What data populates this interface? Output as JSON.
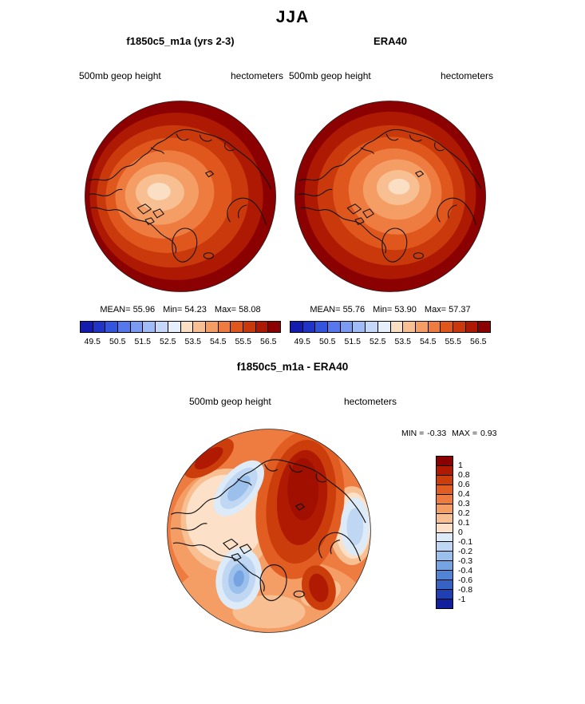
{
  "title": "JJA",
  "panels": {
    "model": {
      "title": "f1850c5_m1a (yrs 2-3)",
      "field": "500mb geop height",
      "units": "hectometers",
      "stats": {
        "mean_label": "MEAN=",
        "mean": "55.96",
        "min_label": "Min=",
        "min": "54.23",
        "max_label": "Max=",
        "max": "58.08"
      }
    },
    "obs": {
      "title": "ERA40",
      "field": "500mb geop height",
      "units": "hectometers",
      "stats": {
        "mean_label": "MEAN=",
        "mean": "55.76",
        "min_label": "Min=",
        "min": "53.90",
        "max_label": "Max=",
        "max": "57.37"
      }
    },
    "diff": {
      "title": "f1850c5_m1a - ERA40",
      "field": "500mb geop height",
      "units": "hectometers",
      "stats": {
        "min_label": "MIN =",
        "min": "-0.33",
        "max_label": "MAX =",
        "max": "0.93"
      }
    }
  },
  "chart_data": [
    {
      "type": "heatmap",
      "title": "f1850c5_m1a (yrs 2-3)",
      "season": "JJA",
      "field": "500mb geop height",
      "units": "hectometers",
      "projection": "north polar stereographic",
      "stats": {
        "mean": 55.96,
        "min": 54.23,
        "max": 58.08
      },
      "colorbar": {
        "orientation": "horizontal",
        "levels": [
          49.5,
          50.0,
          50.5,
          51.0,
          51.5,
          52.0,
          52.5,
          53.0,
          53.5,
          54.0,
          54.5,
          55.0,
          55.5,
          56.0,
          56.5
        ],
        "tick_labels": [
          "49.5",
          "50.5",
          "51.5",
          "52.5",
          "53.5",
          "54.5",
          "55.5",
          "56.5"
        ],
        "colors": [
          "#141baf",
          "#2034c8",
          "#3355de",
          "#5678ec",
          "#7b9bf3",
          "#a0bcf7",
          "#c6d8fa",
          "#e8effc",
          "#fbdfc5",
          "#f8c092",
          "#f49e66",
          "#ee7c40",
          "#e0571e",
          "#c9390b",
          "#ad1902",
          "#8b0000"
        ]
      }
    },
    {
      "type": "heatmap",
      "title": "ERA40",
      "season": "JJA",
      "field": "500mb geop height",
      "units": "hectometers",
      "projection": "north polar stereographic",
      "stats": {
        "mean": 55.76,
        "min": 53.9,
        "max": 57.37
      },
      "colorbar": {
        "orientation": "horizontal",
        "levels": [
          49.5,
          50.0,
          50.5,
          51.0,
          51.5,
          52.0,
          52.5,
          53.0,
          53.5,
          54.0,
          54.5,
          55.0,
          55.5,
          56.0,
          56.5
        ],
        "tick_labels": [
          "49.5",
          "50.5",
          "51.5",
          "52.5",
          "53.5",
          "54.5",
          "55.5",
          "56.5"
        ],
        "colors": [
          "#141baf",
          "#2034c8",
          "#3355de",
          "#5678ec",
          "#7b9bf3",
          "#a0bcf7",
          "#c6d8fa",
          "#e8effc",
          "#fbdfc5",
          "#f8c092",
          "#f49e66",
          "#ee7c40",
          "#e0571e",
          "#c9390b",
          "#ad1902",
          "#8b0000"
        ]
      }
    },
    {
      "type": "heatmap",
      "title": "f1850c5_m1a - ERA40",
      "season": "JJA",
      "field": "500mb geop height",
      "units": "hectometers",
      "projection": "north polar stereographic",
      "stats": {
        "min": -0.33,
        "max": 0.93
      },
      "colorbar": {
        "orientation": "vertical",
        "levels": [
          1,
          0.8,
          0.6,
          0.4,
          0.3,
          0.2,
          0.1,
          0,
          -0.1,
          -0.2,
          -0.3,
          -0.4,
          -0.6,
          -0.8,
          -1
        ],
        "tick_labels": [
          "1",
          "0.8",
          "0.6",
          "0.4",
          "0.3",
          "0.2",
          "0.1",
          "0",
          "-0.1",
          "-0.2",
          "-0.3",
          "-0.4",
          "-0.6",
          "-0.8",
          "-1"
        ],
        "colors": [
          "#8b0000",
          "#b01902",
          "#cc3d0c",
          "#e25d22",
          "#ee7c40",
          "#f49e66",
          "#f8c092",
          "#fce0c8",
          "#ddeaf8",
          "#c0d7f3",
          "#9cc0ec",
          "#76a4e2",
          "#5184d3",
          "#3562c3",
          "#1f3fb2",
          "#101f9e"
        ]
      }
    }
  ]
}
